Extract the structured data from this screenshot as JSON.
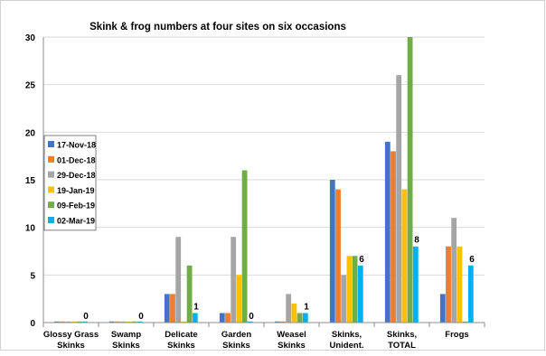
{
  "chart_data": {
    "type": "bar",
    "title": "Skink & frog numbers at four sites on six occasions",
    "xlabel": "",
    "ylabel": "",
    "ylim": [
      0,
      30
    ],
    "yticks": [
      0,
      5,
      10,
      15,
      20,
      25,
      30
    ],
    "grid": true,
    "legend_position": "left",
    "categories": [
      [
        "Glossy Grass",
        "Skinks"
      ],
      [
        "Swamp",
        "Skinks"
      ],
      [
        "Delicate",
        "Skinks"
      ],
      [
        "Garden",
        "Skinks"
      ],
      [
        "Weasel",
        "Skinks"
      ],
      [
        "Skinks,",
        "Unident."
      ],
      [
        "Skinks,",
        "TOTAL"
      ],
      [
        "Frogs"
      ]
    ],
    "series": [
      {
        "name": "17-Nov-18",
        "color": "#4472C4",
        "values": [
          0,
          0,
          3,
          1,
          0,
          15,
          19,
          3
        ]
      },
      {
        "name": "01-Dec-18",
        "color": "#ED7D31",
        "values": [
          0,
          0,
          3,
          1,
          0,
          14,
          18,
          8
        ]
      },
      {
        "name": "29-Dec-18",
        "color": "#A5A5A5",
        "values": [
          0,
          0,
          9,
          9,
          3,
          5,
          26,
          11
        ]
      },
      {
        "name": "19-Jan-19",
        "color": "#FFC000",
        "values": [
          0,
          0,
          0,
          5,
          2,
          7,
          14,
          8
        ]
      },
      {
        "name": "09-Feb-19",
        "color": "#70AD47",
        "values": [
          0,
          0,
          6,
          16,
          1,
          7,
          30,
          0
        ]
      },
      {
        "name": "02-Mar-19",
        "color": "#00B0F0",
        "values": [
          0,
          0,
          1,
          0,
          1,
          6,
          8,
          6
        ]
      }
    ],
    "data_labels": [
      {
        "category_index": 0,
        "series_index": 5,
        "text": "0"
      },
      {
        "category_index": 1,
        "series_index": 5,
        "text": "0"
      },
      {
        "category_index": 2,
        "series_index": 5,
        "text": "1"
      },
      {
        "category_index": 3,
        "series_index": 5,
        "text": "0"
      },
      {
        "category_index": 4,
        "series_index": 5,
        "text": "1"
      },
      {
        "category_index": 5,
        "series_index": 5,
        "text": "6"
      },
      {
        "category_index": 6,
        "series_index": 5,
        "text": "8"
      },
      {
        "category_index": 7,
        "series_index": 5,
        "text": "6"
      }
    ]
  }
}
